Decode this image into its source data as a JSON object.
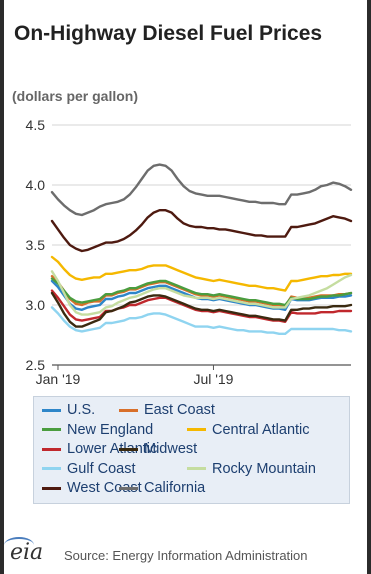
{
  "header": {
    "title": "On-Highway Diesel Fuel Prices",
    "unit": "(dollars per gallon)"
  },
  "footer": {
    "logo_text": "eia",
    "source": "Source: Energy Information Administration"
  },
  "chart_data": {
    "type": "line",
    "title": "On-Highway Diesel Fuel Prices",
    "ylabel": "(dollars per gallon)",
    "xlabel": "",
    "ylim": [
      2.5,
      4.5
    ],
    "yticks": [
      2.5,
      3.0,
      3.5,
      4.0,
      4.5
    ],
    "xtick_labels": [
      {
        "label": "Jan '19",
        "week": 1
      },
      {
        "label": "Jul '19",
        "week": 27
      }
    ],
    "grid": "horizontal",
    "legend_position": "bottom",
    "x": [
      0,
      1,
      2,
      3,
      4,
      5,
      6,
      7,
      8,
      9,
      10,
      11,
      12,
      13,
      14,
      15,
      16,
      17,
      18,
      19,
      20,
      21,
      22,
      23,
      24,
      25,
      26,
      27,
      28,
      29,
      30,
      31,
      32,
      33,
      34,
      35,
      36,
      37,
      38,
      39,
      40,
      41,
      42,
      43,
      44,
      45,
      46,
      47,
      48,
      49,
      50
    ],
    "series": [
      {
        "name": "U.S.",
        "color": "#2e86c9",
        "values": [
          3.2,
          3.15,
          3.08,
          3.01,
          2.97,
          2.96,
          2.98,
          2.99,
          3.0,
          3.05,
          3.05,
          3.07,
          3.08,
          3.1,
          3.1,
          3.12,
          3.14,
          3.15,
          3.16,
          3.16,
          3.14,
          3.12,
          3.1,
          3.08,
          3.06,
          3.05,
          3.05,
          3.04,
          3.05,
          3.04,
          3.03,
          3.02,
          3.01,
          3.0,
          3.0,
          2.99,
          2.98,
          2.97,
          2.97,
          2.96,
          3.05,
          3.04,
          3.04,
          3.04,
          3.05,
          3.06,
          3.06,
          3.06,
          3.07,
          3.07,
          3.08
        ]
      },
      {
        "name": "East Coast",
        "color": "#d86f2a",
        "values": [
          3.24,
          3.19,
          3.12,
          3.05,
          3.01,
          3.0,
          3.02,
          3.03,
          3.03,
          3.08,
          3.08,
          3.1,
          3.11,
          3.13,
          3.13,
          3.15,
          3.17,
          3.18,
          3.19,
          3.19,
          3.17,
          3.15,
          3.13,
          3.11,
          3.09,
          3.08,
          3.08,
          3.07,
          3.08,
          3.07,
          3.06,
          3.05,
          3.04,
          3.03,
          3.03,
          3.02,
          3.01,
          3.0,
          3.0,
          2.99,
          3.07,
          3.06,
          3.06,
          3.06,
          3.07,
          3.08,
          3.08,
          3.08,
          3.09,
          3.09,
          3.1
        ]
      },
      {
        "name": "New England",
        "color": "#4a9d3f",
        "values": [
          3.22,
          3.18,
          3.12,
          3.06,
          3.03,
          3.02,
          3.03,
          3.04,
          3.05,
          3.09,
          3.09,
          3.11,
          3.12,
          3.14,
          3.14,
          3.16,
          3.18,
          3.19,
          3.2,
          3.2,
          3.18,
          3.16,
          3.14,
          3.12,
          3.1,
          3.09,
          3.09,
          3.08,
          3.09,
          3.08,
          3.07,
          3.06,
          3.05,
          3.04,
          3.04,
          3.03,
          3.02,
          3.01,
          3.01,
          3.0,
          3.06,
          3.05,
          3.05,
          3.05,
          3.06,
          3.07,
          3.07,
          3.08,
          3.08,
          3.09,
          3.1
        ]
      },
      {
        "name": "Central Atlantic",
        "color": "#f5b800",
        "values": [
          3.4,
          3.36,
          3.3,
          3.25,
          3.22,
          3.21,
          3.22,
          3.23,
          3.23,
          3.26,
          3.26,
          3.27,
          3.28,
          3.29,
          3.29,
          3.3,
          3.32,
          3.33,
          3.33,
          3.33,
          3.31,
          3.29,
          3.27,
          3.25,
          3.23,
          3.22,
          3.21,
          3.2,
          3.21,
          3.2,
          3.19,
          3.18,
          3.17,
          3.16,
          3.16,
          3.15,
          3.14,
          3.14,
          3.13,
          3.12,
          3.2,
          3.2,
          3.21,
          3.22,
          3.23,
          3.24,
          3.24,
          3.25,
          3.25,
          3.26,
          3.26
        ]
      },
      {
        "name": "Lower Atlantic",
        "color": "#c0282d",
        "values": [
          3.12,
          3.06,
          2.99,
          2.92,
          2.88,
          2.87,
          2.88,
          2.89,
          2.9,
          2.95,
          2.95,
          2.97,
          2.98,
          3.0,
          3.0,
          3.02,
          3.04,
          3.05,
          3.06,
          3.06,
          3.04,
          3.02,
          3.0,
          2.98,
          2.96,
          2.95,
          2.95,
          2.94,
          2.95,
          2.94,
          2.93,
          2.92,
          2.91,
          2.9,
          2.9,
          2.89,
          2.88,
          2.87,
          2.87,
          2.86,
          2.94,
          2.93,
          2.93,
          2.93,
          2.93,
          2.94,
          2.94,
          2.94,
          2.95,
          2.95,
          2.95
        ]
      },
      {
        "name": "Midwest",
        "color": "#3a2a10",
        "values": [
          3.1,
          3.02,
          2.93,
          2.86,
          2.82,
          2.82,
          2.84,
          2.86,
          2.88,
          2.94,
          2.95,
          2.97,
          2.99,
          3.02,
          3.03,
          3.05,
          3.07,
          3.08,
          3.08,
          3.07,
          3.05,
          3.03,
          3.01,
          2.99,
          2.97,
          2.96,
          2.96,
          2.95,
          2.96,
          2.95,
          2.94,
          2.93,
          2.92,
          2.91,
          2.91,
          2.9,
          2.89,
          2.88,
          2.88,
          2.87,
          2.96,
          2.96,
          2.97,
          2.97,
          2.98,
          2.98,
          2.98,
          2.99,
          2.99,
          2.99,
          3.0
        ]
      },
      {
        "name": "Gulf Coast",
        "color": "#8fd4f0",
        "values": [
          2.98,
          2.93,
          2.87,
          2.82,
          2.79,
          2.78,
          2.79,
          2.8,
          2.81,
          2.85,
          2.85,
          2.86,
          2.87,
          2.89,
          2.89,
          2.9,
          2.92,
          2.93,
          2.93,
          2.92,
          2.9,
          2.88,
          2.86,
          2.84,
          2.82,
          2.82,
          2.82,
          2.81,
          2.82,
          2.81,
          2.8,
          2.79,
          2.79,
          2.78,
          2.78,
          2.78,
          2.77,
          2.77,
          2.76,
          2.76,
          2.8,
          2.8,
          2.8,
          2.8,
          2.8,
          2.8,
          2.8,
          2.8,
          2.79,
          2.79,
          2.78
        ]
      },
      {
        "name": "Rocky Mountain",
        "color": "#c5dda0",
        "values": [
          3.28,
          3.2,
          3.1,
          3.0,
          2.94,
          2.92,
          2.92,
          2.93,
          2.94,
          2.98,
          2.99,
          3.02,
          3.04,
          3.06,
          3.07,
          3.09,
          3.11,
          3.13,
          3.14,
          3.14,
          3.12,
          3.1,
          3.08,
          3.07,
          3.06,
          3.06,
          3.06,
          3.05,
          3.06,
          3.05,
          3.04,
          3.03,
          3.02,
          3.01,
          3.01,
          3.0,
          2.99,
          2.98,
          2.98,
          2.98,
          3.05,
          3.06,
          3.07,
          3.08,
          3.1,
          3.12,
          3.14,
          3.17,
          3.2,
          3.23,
          3.25
        ]
      },
      {
        "name": "West Coast",
        "color": "#4e1a10",
        "values": [
          3.7,
          3.63,
          3.56,
          3.5,
          3.47,
          3.45,
          3.46,
          3.48,
          3.5,
          3.52,
          3.52,
          3.53,
          3.55,
          3.58,
          3.62,
          3.67,
          3.73,
          3.77,
          3.79,
          3.79,
          3.77,
          3.72,
          3.68,
          3.66,
          3.65,
          3.65,
          3.64,
          3.64,
          3.63,
          3.63,
          3.62,
          3.61,
          3.6,
          3.59,
          3.58,
          3.58,
          3.57,
          3.57,
          3.57,
          3.57,
          3.65,
          3.65,
          3.66,
          3.67,
          3.68,
          3.7,
          3.72,
          3.74,
          3.73,
          3.72,
          3.7
        ]
      },
      {
        "name": "California",
        "color": "#6d6d6d",
        "values": [
          3.94,
          3.88,
          3.83,
          3.79,
          3.76,
          3.75,
          3.77,
          3.79,
          3.82,
          3.84,
          3.85,
          3.86,
          3.88,
          3.92,
          3.98,
          4.05,
          4.12,
          4.16,
          4.17,
          4.16,
          4.12,
          4.05,
          3.99,
          3.95,
          3.93,
          3.92,
          3.91,
          3.91,
          3.91,
          3.9,
          3.89,
          3.88,
          3.87,
          3.86,
          3.86,
          3.85,
          3.85,
          3.85,
          3.84,
          3.84,
          3.92,
          3.92,
          3.93,
          3.94,
          3.96,
          3.99,
          4.0,
          4.02,
          4.01,
          3.99,
          3.96
        ]
      }
    ]
  }
}
